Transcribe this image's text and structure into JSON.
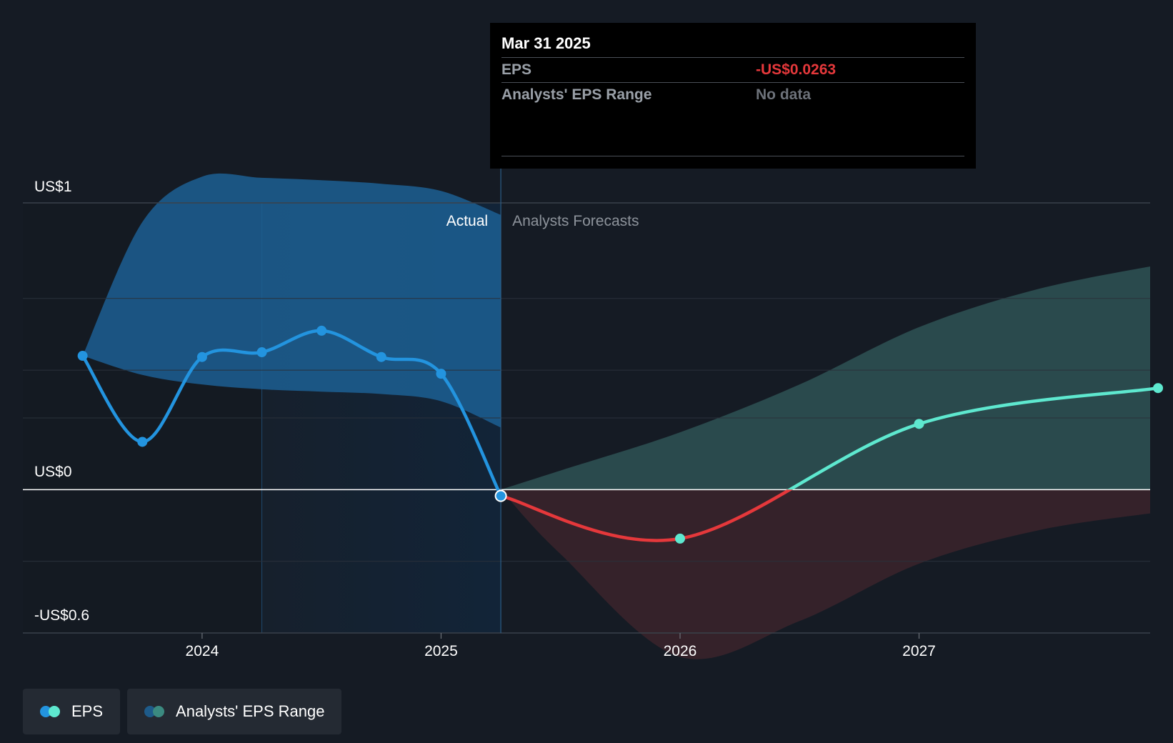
{
  "tooltip": {
    "date": "Mar 31 2025",
    "rows": [
      {
        "label": "EPS",
        "value": "-US$0.0263"
      },
      {
        "label": "Analysts' EPS Range",
        "value": "No data"
      }
    ]
  },
  "region_labels": {
    "actual": "Actual",
    "forecast": "Analysts Forecasts"
  },
  "legend": {
    "items": [
      {
        "label": "EPS",
        "colors": [
          "#2394df",
          "#5ee8cf"
        ]
      },
      {
        "label": "Analysts' EPS Range",
        "colors": [
          "#1e5b8a",
          "#3b8a80"
        ]
      }
    ]
  },
  "colors": {
    "eps_actual": "#2394df",
    "eps_forecast_positive": "#5ee8cf",
    "eps_forecast_negative": "#e5383b",
    "range_actual": "#1c5f93",
    "range_forecast_positive": "#2a4a4d",
    "range_forecast_negative": "#35222a"
  },
  "chart_data": {
    "type": "line",
    "ylim": [
      -0.6,
      1.0
    ],
    "y_tick_labels": [
      {
        "value": 1.0,
        "label": "US$1"
      },
      {
        "value": 0.0,
        "label": "US$0"
      },
      {
        "value": -0.6,
        "label": "-US$0.6"
      }
    ],
    "x_tick_labels": [
      {
        "value": 2024.0,
        "label": "2024"
      },
      {
        "value": 2025.0,
        "label": "2025"
      },
      {
        "value": 2026.0,
        "label": "2026"
      },
      {
        "value": 2027.0,
        "label": "2027"
      }
    ],
    "actual_end": 2025.25,
    "highlight_start": 2024.25,
    "series": [
      {
        "name": "EPS",
        "actual": [
          {
            "x": 2023.5,
            "y": 0.56
          },
          {
            "x": 2023.75,
            "y": 0.2
          },
          {
            "x": 2024.0,
            "y": 0.555
          },
          {
            "x": 2024.25,
            "y": 0.575
          },
          {
            "x": 2024.5,
            "y": 0.665
          },
          {
            "x": 2024.75,
            "y": 0.555
          },
          {
            "x": 2025.0,
            "y": 0.485
          },
          {
            "x": 2025.25,
            "y": -0.0263
          }
        ],
        "forecast": [
          {
            "x": 2025.25,
            "y": -0.0263
          },
          {
            "x": 2026.0,
            "y": -0.205
          },
          {
            "x": 2027.0,
            "y": 0.275
          },
          {
            "x": 2028.0,
            "y": 0.425
          }
        ]
      }
    ],
    "range_actual": {
      "x": [
        2023.5,
        2023.75,
        2024.0,
        2024.25,
        2024.5,
        2024.75,
        2025.0,
        2025.25
      ],
      "upper": [
        0.56,
        1.12,
        1.31,
        1.305,
        1.295,
        1.28,
        1.25,
        1.15
      ],
      "lower": [
        0.56,
        0.48,
        0.44,
        0.42,
        0.41,
        0.4,
        0.37,
        0.26
      ]
    },
    "range_forecast": {
      "x": [
        2025.25,
        2025.5,
        2026.0,
        2026.5,
        2027.0,
        2027.5,
        2028.0
      ],
      "upper": [
        0.0,
        0.08,
        0.24,
        0.44,
        0.68,
        0.84,
        0.94
      ],
      "lower": [
        0.0,
        -0.27,
        -0.7,
        -0.55,
        -0.31,
        -0.17,
        -0.095
      ]
    }
  }
}
